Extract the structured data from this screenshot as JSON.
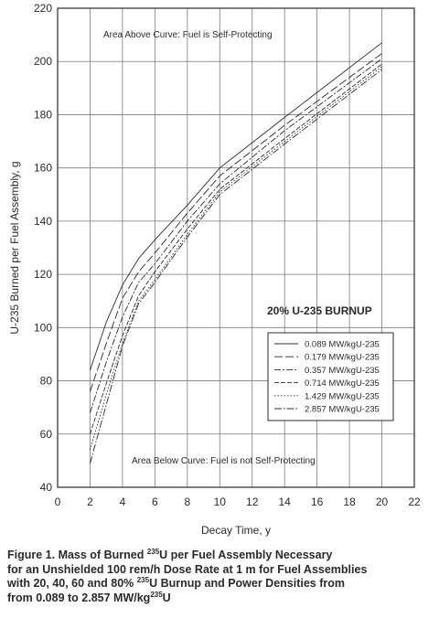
{
  "colors": {
    "ink": "#2a2a2a",
    "grid": "#7a7a7a",
    "background": "#ffffff"
  },
  "annotations": {
    "above": "Area Above Curve: Fuel is Self-Protecting",
    "below": "Area Below Curve: Fuel is not Self-Protecting",
    "burnup": "20% U-235 BURNUP"
  },
  "caption": {
    "line1_pre": "Figure 1.  Mass of Burned ",
    "line1_sup": "235",
    "line1_post": "U per Fuel Assembly Necessary",
    "line2": "for an Unshielded 100 rem/h Dose Rate at 1 m for Fuel Assemblies",
    "line3_pre": "with 20, 40, 60 and 80% ",
    "line3_sup": "235",
    "line3_post": "U Burnup and Power Densities from",
    "line4_pre": "from 0.089 to 2.857 MW/kg",
    "line4_sup": "235",
    "line4_post": "U"
  },
  "chart_data": {
    "type": "line",
    "title": "",
    "xlabel": "Decay Time, y",
    "ylabel": "U-235 Burned per Fuel Assembly, g",
    "xlim": [
      0,
      22
    ],
    "ylim": [
      40,
      220
    ],
    "xticks": [
      0,
      2,
      4,
      6,
      8,
      10,
      12,
      14,
      16,
      18,
      20,
      22
    ],
    "yticks": [
      40,
      60,
      80,
      100,
      120,
      140,
      160,
      180,
      200,
      220
    ],
    "grid": true,
    "legend_position": "center-right",
    "x": [
      2,
      3,
      4,
      5,
      6,
      8,
      10,
      14,
      20
    ],
    "series": [
      {
        "name": "0.089 MW/kgU-235",
        "dash": "",
        "values": [
          84,
          102,
          116,
          126,
          133,
          146,
          160,
          179,
          207
        ]
      },
      {
        "name": "0.179 MW/kgU-235",
        "dash": "9 3",
        "values": [
          76,
          94,
          111,
          121,
          128,
          143,
          157,
          176,
          203
        ]
      },
      {
        "name": "0.357 MW/kgU-235",
        "dash": "7 2 2 2",
        "values": [
          68,
          87,
          104,
          117,
          124,
          140,
          154,
          174,
          201
        ]
      },
      {
        "name": "0.714 MW/kgU-235",
        "dash": "5 2",
        "values": [
          60,
          79,
          97,
          112,
          121,
          137,
          152,
          171,
          199
        ]
      },
      {
        "name": "1.429 MW/kgU-235",
        "dash": "1.5 2",
        "values": [
          54,
          75,
          94,
          110,
          118,
          135,
          151,
          170,
          198
        ]
      },
      {
        "name": "2.857 MW/kgU-235",
        "dash": "8 2 1.5 2",
        "values": [
          49,
          71,
          93,
          109,
          117,
          134,
          150,
          169,
          197
        ]
      }
    ]
  }
}
